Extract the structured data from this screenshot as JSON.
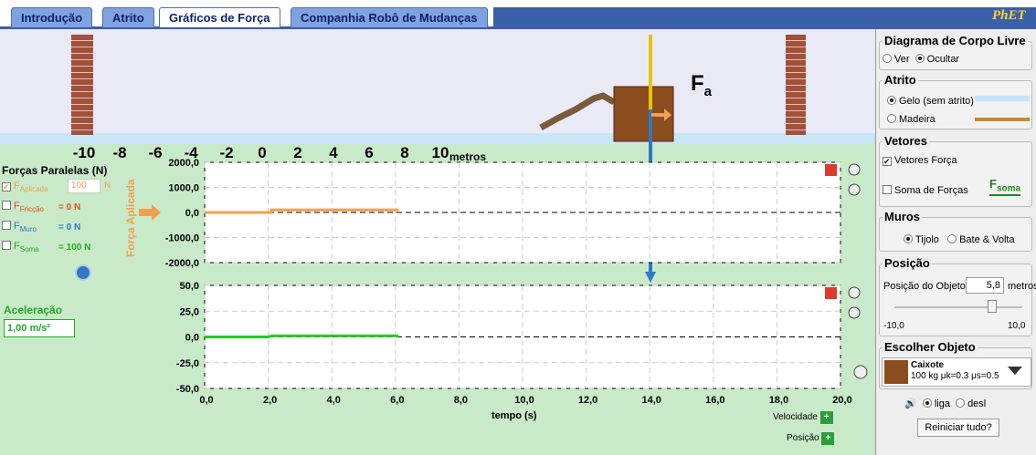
{
  "tabs": [
    "Introdução",
    "Atrito",
    "Gráficos de Força",
    "Companhia Robô de Mudanças"
  ],
  "logo": "PhET",
  "scene": {
    "ruler_labels": [
      "-10",
      "-8",
      "-6",
      "-4",
      "-2",
      "0",
      "2",
      "4",
      "6",
      "8",
      "10"
    ],
    "ruler_unit": "metros",
    "force_symbol": "F",
    "force_subscript": "a"
  },
  "forces_panel": {
    "title": "Forças Paralelas (N)",
    "items": [
      {
        "symbol": "F",
        "subscript": "Aplicada",
        "value": "100",
        "unit": "N"
      },
      {
        "symbol": "F",
        "subscript": "Fricção",
        "value": "= 0 N"
      },
      {
        "symbol": "F",
        "subscript": "Muro",
        "value": "= 0 N"
      },
      {
        "symbol": "F",
        "subscript": "Soma",
        "value": "= 100 N"
      }
    ]
  },
  "acceleration": {
    "label": "Aceleração",
    "value": "1,00 m/s²"
  },
  "graphs": [
    {
      "ylabel": "Força Aplicada",
      "color": "#f0a050",
      "ylim": [
        -2000,
        2000
      ],
      "yticks": [
        {
          "value": 2000,
          "label": "2000,0"
        },
        {
          "value": 1000,
          "label": "1000,0"
        },
        {
          "value": 0,
          "label": "0,0"
        },
        {
          "value": -1000,
          "label": "-1000,0"
        },
        {
          "value": -2000,
          "label": "-2000,0"
        }
      ],
      "series": {
        "x": [
          0,
          2.1,
          2.1,
          6.1
        ],
        "y": [
          0,
          0,
          100,
          100
        ]
      }
    },
    {
      "color": "#22cc22",
      "ylim": [
        -50,
        50
      ],
      "yticks": [
        {
          "value": 50,
          "label": "50,0"
        },
        {
          "value": 25,
          "label": "25,0"
        },
        {
          "value": 0,
          "label": "0,0"
        },
        {
          "value": -25,
          "label": "-25,0"
        },
        {
          "value": -50,
          "label": "-50,0"
        }
      ],
      "series": {
        "x": [
          0,
          2.0,
          2.1,
          6.1
        ],
        "y": [
          0,
          0,
          1,
          1
        ]
      }
    }
  ],
  "time_axis": {
    "label": "tempo (s)",
    "xlim": [
      0,
      20
    ],
    "xticks": [
      {
        "value": 0,
        "label": "0,0"
      },
      {
        "value": 2,
        "label": "2,0"
      },
      {
        "value": 4,
        "label": "4,0"
      },
      {
        "value": 6,
        "label": "6,0"
      },
      {
        "value": 8,
        "label": "8,0"
      },
      {
        "value": 10,
        "label": "10,0"
      },
      {
        "value": 12,
        "label": "12,0"
      },
      {
        "value": 14,
        "label": "14,0"
      },
      {
        "value": 16,
        "label": "16,0"
      },
      {
        "value": 18,
        "label": "18,0"
      },
      {
        "value": 20,
        "label": "20,0"
      }
    ]
  },
  "graph_buttons": [
    "Velocidade",
    "Posição"
  ],
  "right_panel": {
    "free_body": {
      "title": "Diagrama de Corpo Livre",
      "options": [
        "Ver",
        "Ocultar"
      ]
    },
    "friction": {
      "title": "Atrito",
      "options": [
        "Gelo (sem atrito)",
        "Madeira"
      ]
    },
    "vectors": {
      "title": "Vetores",
      "options": [
        "Vetores Força",
        "Soma de Forças"
      ],
      "sum_symbol": "F",
      "sum_subscript": "soma"
    },
    "walls": {
      "title": "Muros",
      "options": [
        "Tijolo",
        "Bate & Volta"
      ]
    },
    "position": {
      "title": "Posição",
      "label": "Posição do Objeto",
      "value": "5,8",
      "unit": "metros",
      "min": "-10,0",
      "max": "10,0"
    },
    "object": {
      "title": "Escolher Objeto",
      "name": "Caixote",
      "desc": "100 kg μk=0.3 μs=0.5"
    },
    "sound": [
      "liga",
      "desl"
    ],
    "reset": "Reiniciar tudo?"
  }
}
